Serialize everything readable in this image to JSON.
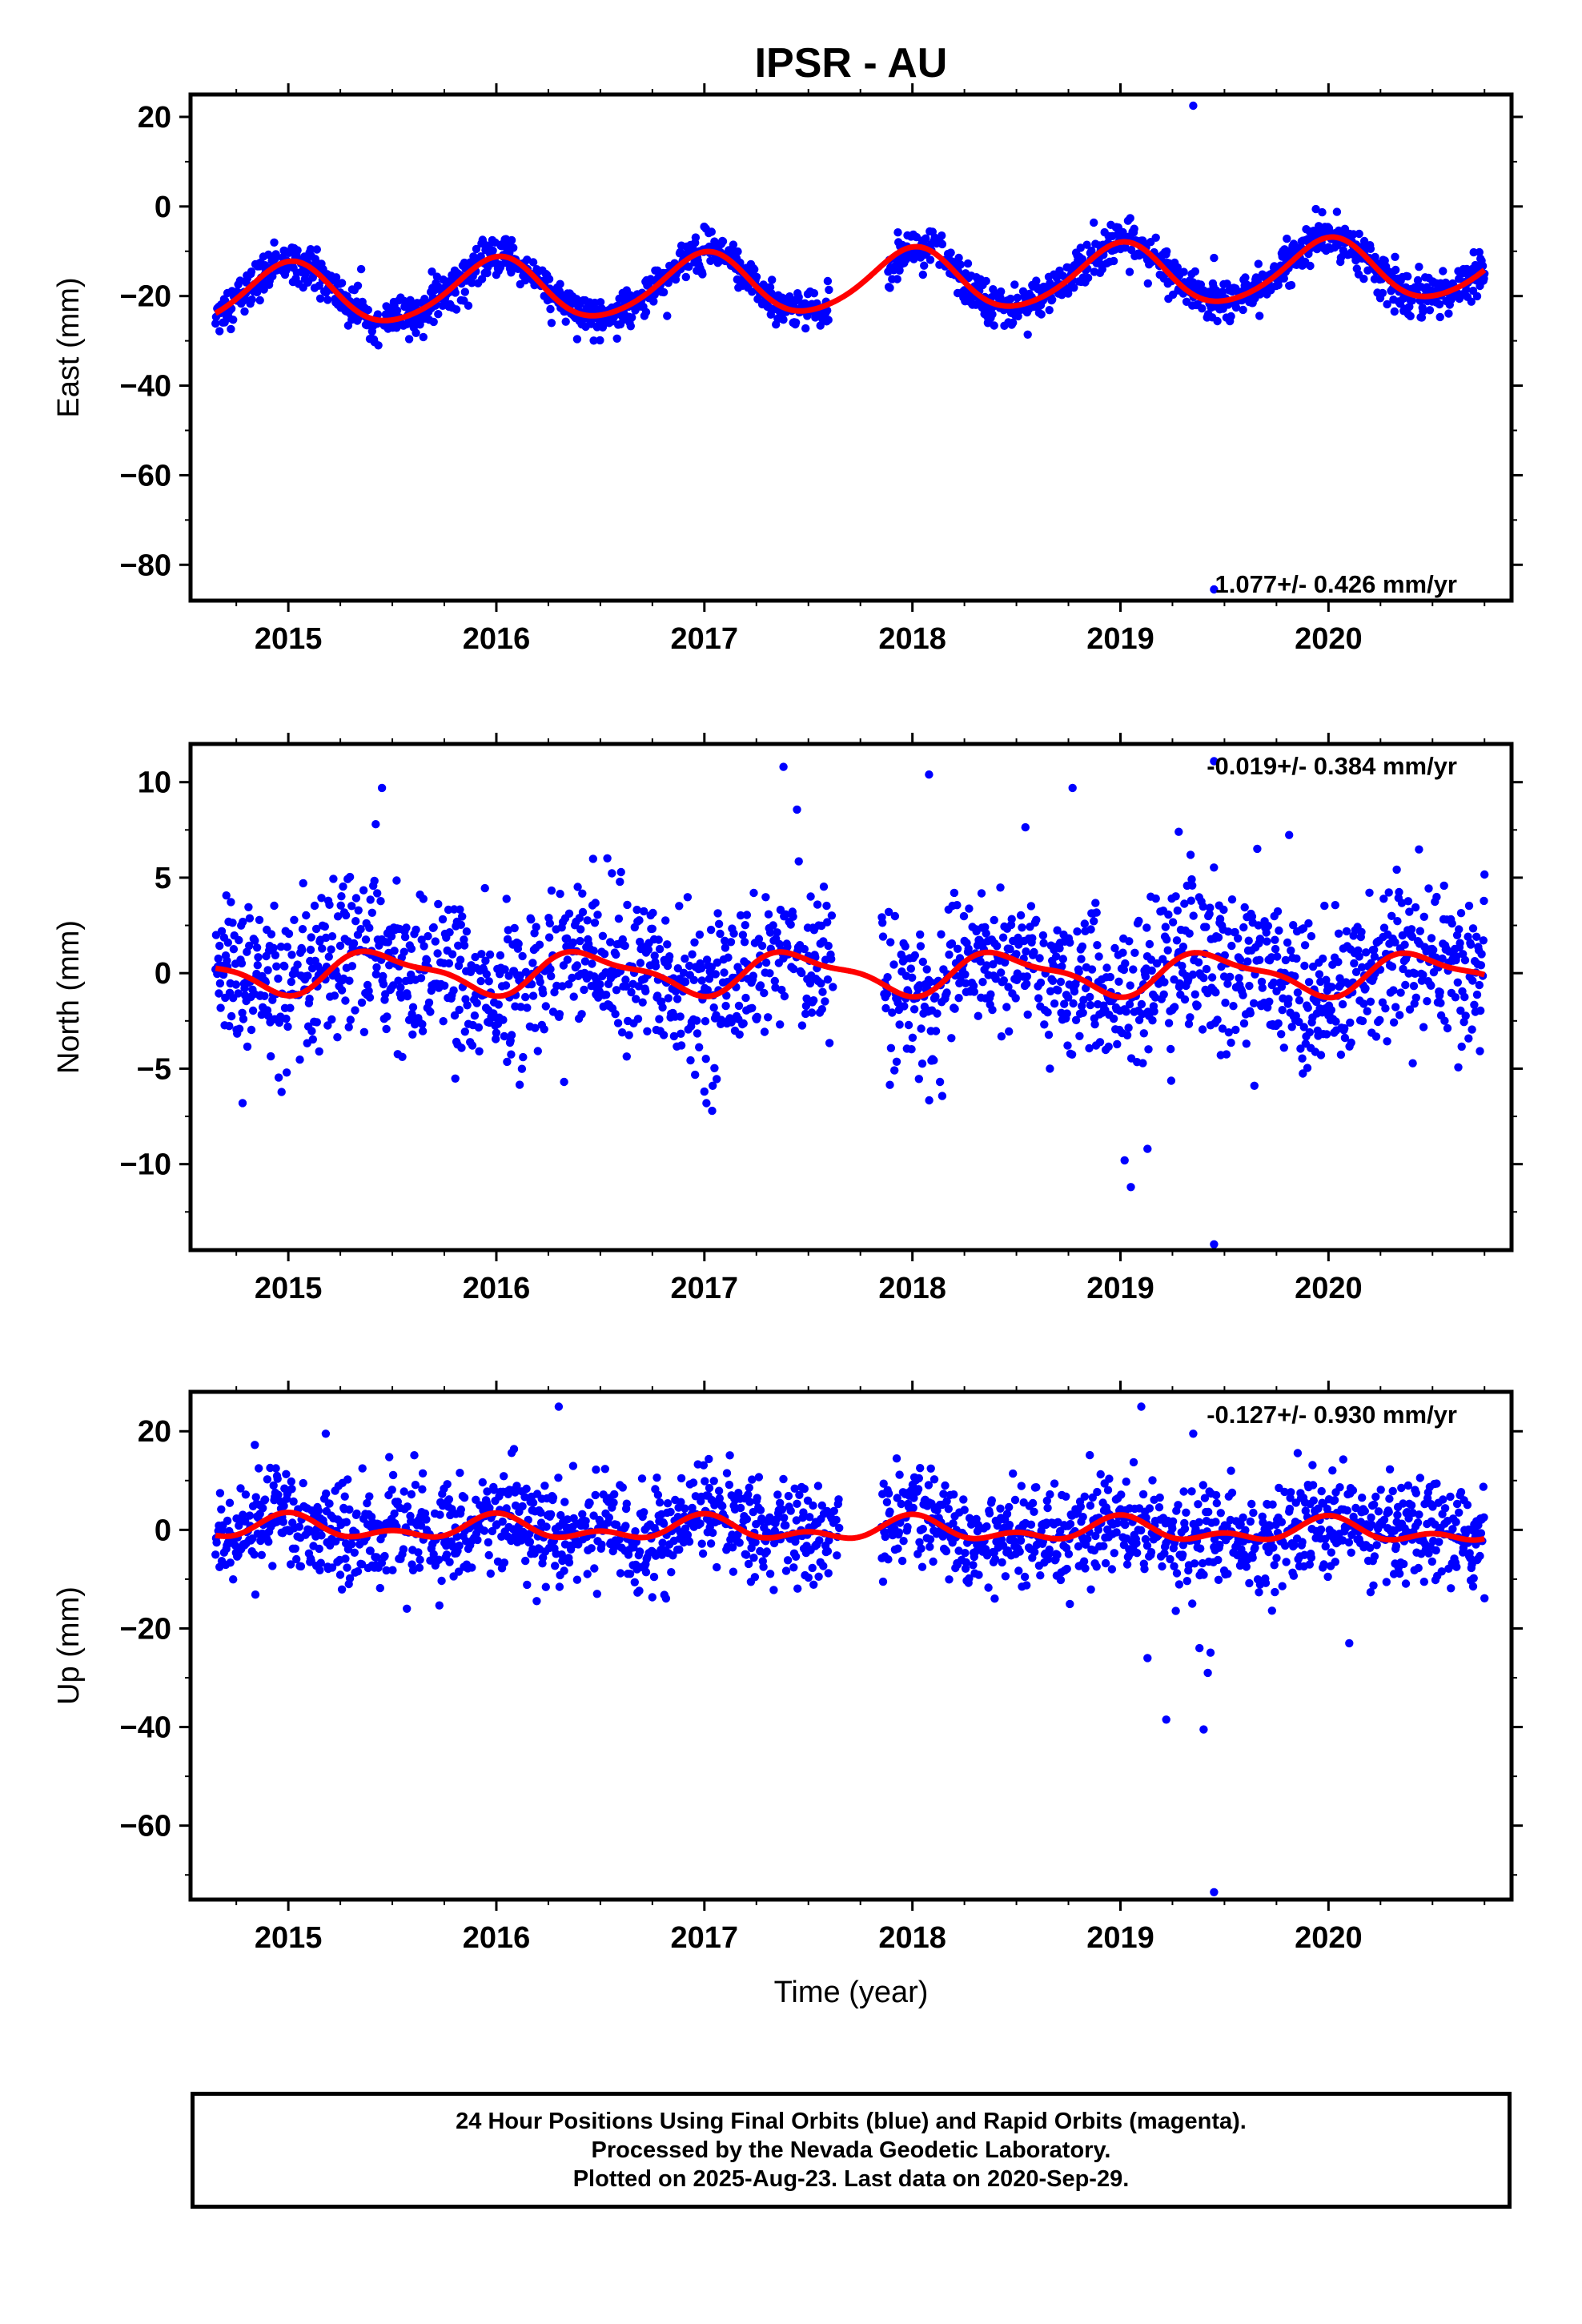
{
  "title": "IPSR - AU",
  "xlabel": "Time (year)",
  "footer": {
    "line1": "24 Hour Positions Using Final Orbits (blue) and Rapid Orbits (magenta).",
    "line2": "Processed by the Nevada Geodetic Laboratory.",
    "line3": "Plotted on 2025-Aug-23. Last data on 2020-Sep-29."
  },
  "colors": {
    "points": "#0000ff",
    "model": "#ff0000",
    "axis": "#000000"
  },
  "chart_data": [
    {
      "type": "scatter",
      "component": "East",
      "ylabel": "East (mm)",
      "velocity_text": "1.077+/- 0.426 mm/yr",
      "xlim": [
        2014.53,
        2020.88
      ],
      "ylim": [
        -88,
        25
      ],
      "yticks": [
        20,
        0,
        -20,
        -40,
        -60,
        -80
      ],
      "xticks": [
        2015,
        2016,
        2017,
        2018,
        2019,
        2020
      ],
      "data_range": [
        2014.65,
        2020.75
      ],
      "gap": [
        2017.6,
        2017.88
      ],
      "model": {
        "offset": -20.1,
        "trend": 1.077,
        "t0": 2014.65,
        "annual_amp": 6.8,
        "annual_phase": 2015.0,
        "semi_amp": 0.8,
        "semi_phase": 2015.05
      },
      "noise": 2.2,
      "outliers": [
        {
          "x": 2019.35,
          "y": 22.5
        },
        {
          "x": 2019.45,
          "y": -11.5
        },
        {
          "x": 2019.45,
          "y": -85.5
        },
        {
          "x": 2015.35,
          "y": -14.0
        }
      ]
    },
    {
      "type": "scatter",
      "component": "North",
      "ylabel": "North (mm)",
      "velocity_text": "-0.019+/- 0.384 mm/yr",
      "xlim": [
        2014.53,
        2020.88
      ],
      "ylim": [
        -14.5,
        12
      ],
      "yticks": [
        10,
        5,
        0,
        -5,
        -10
      ],
      "xticks": [
        2015,
        2016,
        2017,
        2018,
        2019,
        2020
      ],
      "data_range": [
        2014.65,
        2020.75
      ],
      "gap": [
        2017.62,
        2017.85
      ],
      "model": {
        "offset": 0.0,
        "trend": -0.019,
        "t0": 2017.7,
        "annual_amp": 1.0,
        "annual_phase": 2015.45,
        "semi_amp": 0.35,
        "semi_phase": 2015.3
      },
      "noise": 2.0,
      "outliers": [
        {
          "x": 2015.45,
          "y": 9.7
        },
        {
          "x": 2015.42,
          "y": 7.8
        },
        {
          "x": 2017.38,
          "y": 10.8
        },
        {
          "x": 2018.08,
          "y": 10.4
        },
        {
          "x": 2018.77,
          "y": 9.7
        },
        {
          "x": 2019.28,
          "y": 7.4
        },
        {
          "x": 2019.45,
          "y": 11.1
        },
        {
          "x": 2019.05,
          "y": -11.2
        },
        {
          "x": 2019.02,
          "y": -9.8
        },
        {
          "x": 2019.45,
          "y": -14.2
        },
        {
          "x": 2019.13,
          "y": -9.2
        },
        {
          "x": 2014.78,
          "y": -6.8
        },
        {
          "x": 2017.0,
          "y": -6.2
        }
      ]
    },
    {
      "type": "scatter",
      "component": "Up",
      "ylabel": "Up (mm)",
      "velocity_text": "-0.127+/- 0.930 mm/yr",
      "xlim": [
        2014.53,
        2020.88
      ],
      "ylim": [
        -75,
        28
      ],
      "yticks": [
        20,
        0,
        -20,
        -40,
        -60
      ],
      "xticks": [
        2015,
        2016,
        2017,
        2018,
        2019,
        2020
      ],
      "data_range": [
        2014.65,
        2020.75
      ],
      "gap": [
        2017.65,
        2017.85
      ],
      "model": {
        "offset": 0.0,
        "trend": -0.127,
        "t0": 2017.7,
        "annual_amp": 1.8,
        "annual_phase": 2016.0,
        "semi_amp": 1.4,
        "semi_phase": 2015.0
      },
      "noise": 5.0,
      "outliers": [
        {
          "x": 2016.3,
          "y": 25.0
        },
        {
          "x": 2019.1,
          "y": 25.0
        },
        {
          "x": 2015.18,
          "y": 19.5
        },
        {
          "x": 2019.35,
          "y": 19.5
        },
        {
          "x": 2019.13,
          "y": -26.0
        },
        {
          "x": 2019.22,
          "y": -38.5
        },
        {
          "x": 2019.4,
          "y": -40.5
        },
        {
          "x": 2019.45,
          "y": -73.5
        },
        {
          "x": 2019.38,
          "y": -24.0
        },
        {
          "x": 2015.57,
          "y": -16.0
        },
        {
          "x": 2020.1,
          "y": -23.0
        },
        {
          "x": 2019.42,
          "y": -29.0
        }
      ]
    }
  ]
}
